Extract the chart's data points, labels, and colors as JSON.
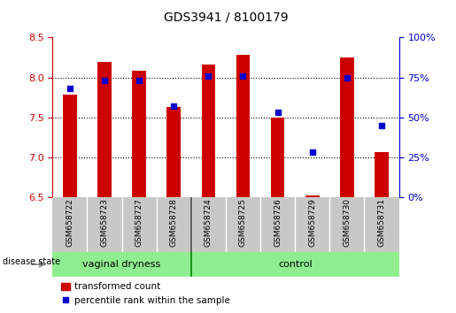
{
  "title": "GDS3941 / 8100179",
  "samples": [
    "GSM658722",
    "GSM658723",
    "GSM658727",
    "GSM658728",
    "GSM658724",
    "GSM658725",
    "GSM658726",
    "GSM658729",
    "GSM658730",
    "GSM658731"
  ],
  "red_values": [
    7.78,
    8.19,
    8.08,
    7.63,
    8.16,
    8.28,
    7.5,
    6.52,
    8.25,
    7.06
  ],
  "blue_values": [
    68,
    73,
    73,
    57,
    76,
    76,
    53,
    28,
    75,
    45
  ],
  "ylim_left": [
    6.5,
    8.5
  ],
  "ylim_right": [
    0,
    100
  ],
  "yticks_left": [
    6.5,
    7.0,
    7.5,
    8.0,
    8.5
  ],
  "yticks_right": [
    0,
    25,
    50,
    75,
    100
  ],
  "bar_color": "#CC0000",
  "dot_color": "#0000CC",
  "background_color": "#ffffff",
  "left_axis_color": "#CC0000",
  "right_axis_color": "#0000CC",
  "group1_label": "vaginal dryness",
  "group2_label": "control",
  "group1_indices": [
    0,
    1,
    2,
    3
  ],
  "group2_indices": [
    4,
    5,
    6,
    7,
    8,
    9
  ],
  "group_color": "#90EE90",
  "group_border_color": "#008000",
  "sample_bg_color": "#C8C8C8",
  "bar_width": 0.4,
  "legend_labels": [
    "transformed count",
    "percentile rank within the sample"
  ],
  "disease_state_label": "disease state",
  "title_fontsize": 10,
  "axis_fontsize": 8,
  "sample_fontsize": 6.5,
  "group_fontsize": 8,
  "legend_fontsize": 7.5
}
